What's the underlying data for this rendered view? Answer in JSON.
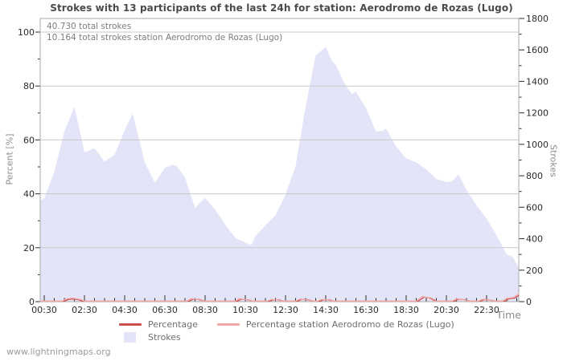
{
  "page": {
    "watermark": "www.lightningmaps.org"
  },
  "chart_data": {
    "type": "area",
    "title": "Strokes with 13 participants of the last 24h for station: Aerodromo de Rozas (Lugo)",
    "annotations": [
      "40.730 total strokes",
      "10.164 total strokes station Aerodromo de Rozas (Lugo)"
    ],
    "x_axis": {
      "label": "Time",
      "major_ticks": [
        "00:30",
        "02:30",
        "04:30",
        "06:30",
        "08:30",
        "10:30",
        "12:30",
        "14:30",
        "16:30",
        "18:30",
        "20:30",
        "22:30"
      ],
      "minor_step_hours": 0.5,
      "range_hours": [
        0.3,
        24.1
      ]
    },
    "y_left": {
      "label": "Percent  [%]",
      "ticks": [
        0,
        20,
        40,
        60,
        80,
        100
      ],
      "minor_step": 10,
      "range": [
        0,
        100
      ]
    },
    "y_right": {
      "label": "Strokes",
      "ticks": [
        0,
        200,
        400,
        600,
        800,
        1000,
        1200,
        1400,
        1600,
        1800
      ],
      "minor_step": 100,
      "range": [
        0,
        1800
      ]
    },
    "grid": "horizontal",
    "legend_position": "bottom",
    "colors": {
      "percentage_line": "#c9504d",
      "percentage_station_line": "#f2a8a4",
      "strokes_area": "#e4e4f8",
      "gridline": "#c9c9c9",
      "plot_border": "#ababab"
    },
    "series": [
      {
        "name": "Percentage",
        "type": "line",
        "axis": "left",
        "color": "#c9504d",
        "points": [
          [
            0.3,
            0.15
          ],
          [
            1.5,
            0.15
          ],
          [
            1.7,
            0.8
          ],
          [
            1.9,
            1.0
          ],
          [
            2.2,
            0.7
          ],
          [
            2.4,
            0.15
          ],
          [
            7.7,
            0.15
          ],
          [
            7.9,
            0.9
          ],
          [
            8.2,
            0.8
          ],
          [
            8.5,
            0.15
          ],
          [
            10.1,
            0.15
          ],
          [
            10.3,
            0.9
          ],
          [
            10.6,
            0.7
          ],
          [
            10.9,
            0.15
          ],
          [
            11.7,
            0.15
          ],
          [
            11.9,
            0.7
          ],
          [
            12.2,
            0.6
          ],
          [
            12.4,
            0.15
          ],
          [
            13.1,
            0.15
          ],
          [
            13.3,
            0.8
          ],
          [
            13.6,
            0.7
          ],
          [
            13.9,
            0.15
          ],
          [
            14.2,
            0.15
          ],
          [
            14.4,
            0.7
          ],
          [
            14.7,
            0.6
          ],
          [
            14.9,
            0.15
          ],
          [
            19.1,
            0.15
          ],
          [
            19.4,
            1.7
          ],
          [
            19.7,
            1.3
          ],
          [
            20.0,
            0.15
          ],
          [
            20.9,
            0.15
          ],
          [
            21.1,
            0.9
          ],
          [
            21.4,
            0.7
          ],
          [
            21.7,
            0.15
          ],
          [
            22.2,
            0.15
          ],
          [
            22.4,
            0.8
          ],
          [
            22.7,
            0.5
          ],
          [
            23.0,
            0.15
          ],
          [
            23.4,
            0.15
          ],
          [
            23.6,
            1.0
          ],
          [
            23.9,
            1.3
          ],
          [
            24.1,
            2.3
          ]
        ]
      },
      {
        "name": "Percentage station Aerodromo de Rozas (Lugo)",
        "type": "line",
        "axis": "left",
        "color": "#f2a8a4",
        "points": [
          [
            0.3,
            0.2
          ],
          [
            1.4,
            0.2
          ],
          [
            1.6,
            1.0
          ],
          [
            1.9,
            1.3
          ],
          [
            2.3,
            0.8
          ],
          [
            2.5,
            0.2
          ],
          [
            7.6,
            0.2
          ],
          [
            7.8,
            1.1
          ],
          [
            8.1,
            0.9
          ],
          [
            8.4,
            0.2
          ],
          [
            10.0,
            0.2
          ],
          [
            10.2,
            1.1
          ],
          [
            10.5,
            0.8
          ],
          [
            10.8,
            0.2
          ],
          [
            11.6,
            0.2
          ],
          [
            11.8,
            0.8
          ],
          [
            12.1,
            0.6
          ],
          [
            12.3,
            0.2
          ],
          [
            13.0,
            0.2
          ],
          [
            13.2,
            0.9
          ],
          [
            13.5,
            0.7
          ],
          [
            13.8,
            0.2
          ],
          [
            14.1,
            0.2
          ],
          [
            14.3,
            0.8
          ],
          [
            14.6,
            0.6
          ],
          [
            14.8,
            0.2
          ],
          [
            19.0,
            0.2
          ],
          [
            19.3,
            1.9
          ],
          [
            19.6,
            1.5
          ],
          [
            19.9,
            0.2
          ],
          [
            20.8,
            0.2
          ],
          [
            21.0,
            1.0
          ],
          [
            21.3,
            0.8
          ],
          [
            21.6,
            0.2
          ],
          [
            22.1,
            0.2
          ],
          [
            22.3,
            0.9
          ],
          [
            22.6,
            0.6
          ],
          [
            22.9,
            0.2
          ],
          [
            23.3,
            0.2
          ],
          [
            23.5,
            1.2
          ],
          [
            23.8,
            1.5
          ],
          [
            24.1,
            2.8
          ]
        ]
      },
      {
        "name": "Strokes",
        "type": "area",
        "axis": "right",
        "color": "#e4e4f8",
        "points": [
          [
            0.3,
            640
          ],
          [
            0.5,
            655
          ],
          [
            1.0,
            825
          ],
          [
            1.5,
            1080
          ],
          [
            2.0,
            1240
          ],
          [
            2.5,
            950
          ],
          [
            3.0,
            975
          ],
          [
            3.5,
            890
          ],
          [
            4.0,
            935
          ],
          [
            4.5,
            1090
          ],
          [
            4.9,
            1195
          ],
          [
            5.5,
            885
          ],
          [
            6.0,
            755
          ],
          [
            6.5,
            850
          ],
          [
            6.9,
            870
          ],
          [
            7.1,
            860
          ],
          [
            7.5,
            790
          ],
          [
            8.0,
            595
          ],
          [
            8.5,
            660
          ],
          [
            9.0,
            585
          ],
          [
            9.5,
            490
          ],
          [
            10.0,
            405
          ],
          [
            10.5,
            375
          ],
          [
            10.8,
            360
          ],
          [
            11.0,
            415
          ],
          [
            11.5,
            485
          ],
          [
            12.0,
            550
          ],
          [
            12.5,
            680
          ],
          [
            13.0,
            860
          ],
          [
            13.5,
            1240
          ],
          [
            14.0,
            1565
          ],
          [
            14.5,
            1620
          ],
          [
            14.8,
            1530
          ],
          [
            15.0,
            1505
          ],
          [
            15.5,
            1370
          ],
          [
            15.8,
            1320
          ],
          [
            16.0,
            1335
          ],
          [
            16.5,
            1230
          ],
          [
            17.0,
            1080
          ],
          [
            17.3,
            1085
          ],
          [
            17.5,
            1100
          ],
          [
            18.0,
            985
          ],
          [
            18.5,
            910
          ],
          [
            19.0,
            885
          ],
          [
            19.5,
            840
          ],
          [
            20.0,
            780
          ],
          [
            20.5,
            760
          ],
          [
            20.8,
            765
          ],
          [
            21.1,
            810
          ],
          [
            21.5,
            710
          ],
          [
            22.0,
            612
          ],
          [
            22.5,
            528
          ],
          [
            23.0,
            420
          ],
          [
            23.5,
            300
          ],
          [
            23.8,
            285
          ],
          [
            24.1,
            215
          ]
        ]
      }
    ]
  }
}
